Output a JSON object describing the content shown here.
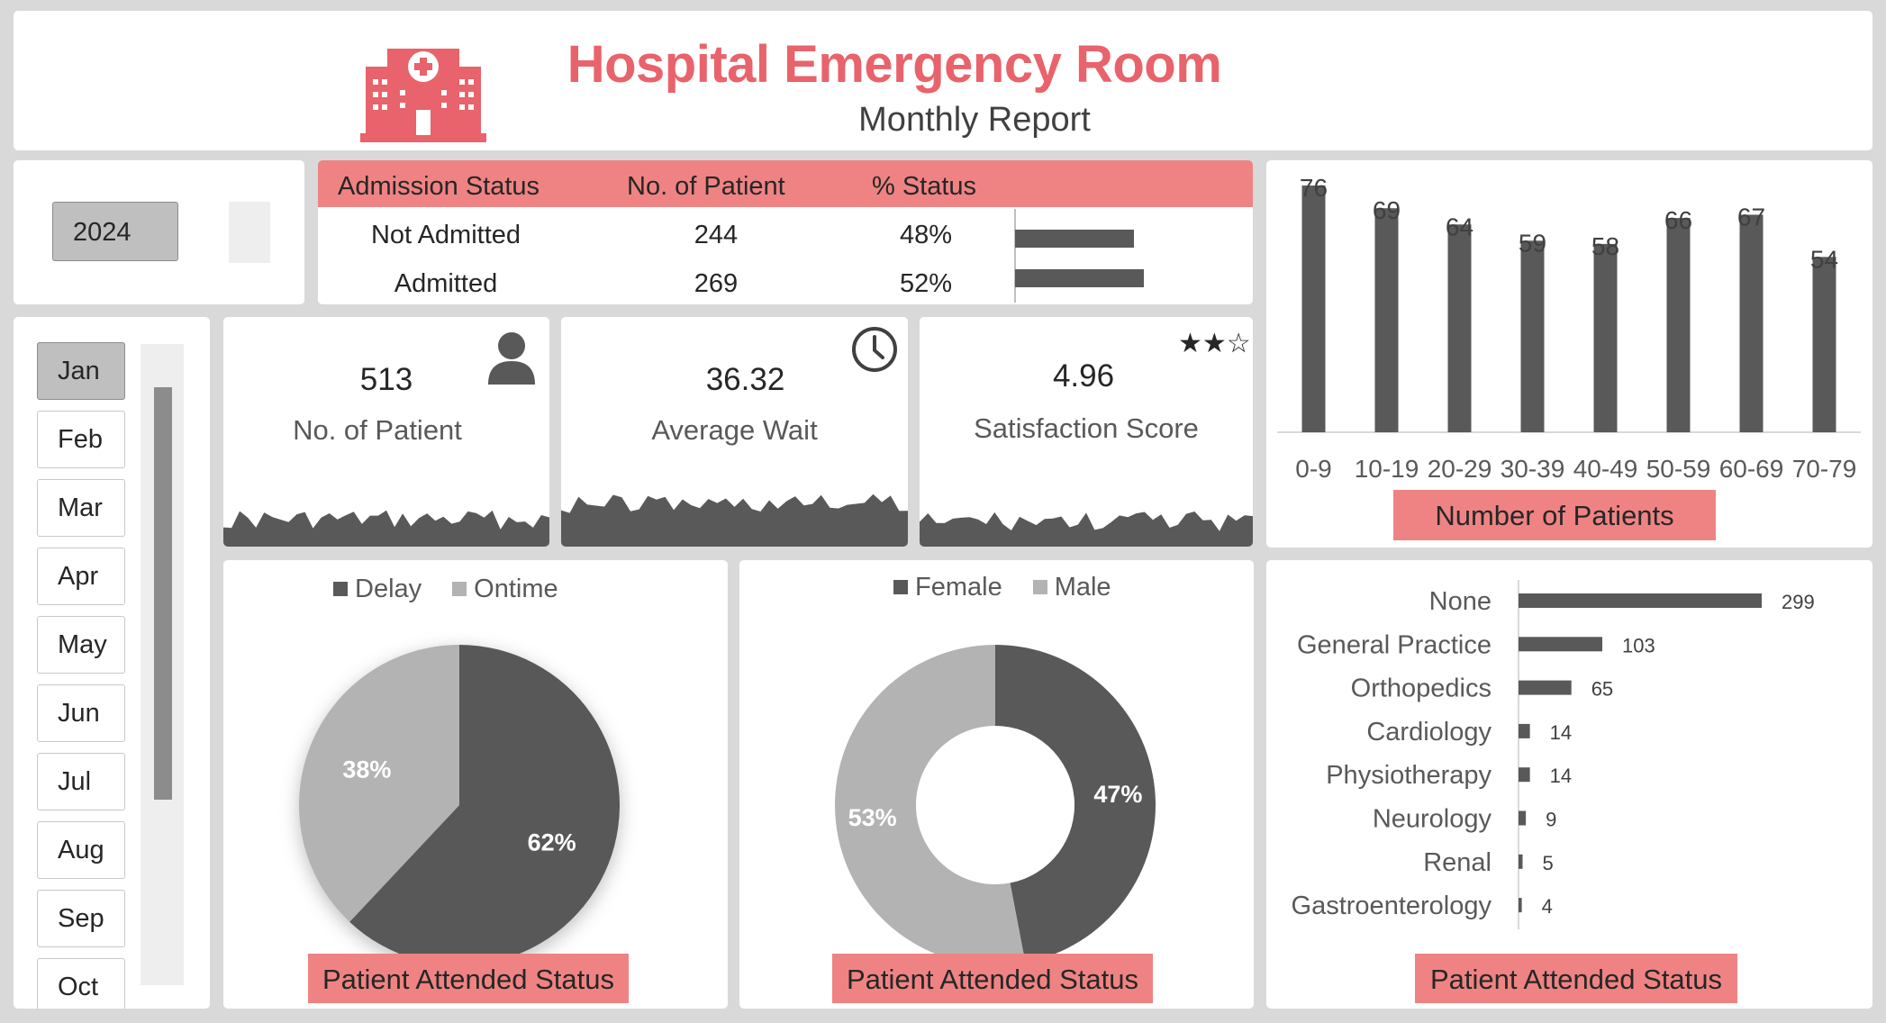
{
  "header": {
    "title": "Hospital Emergency Room",
    "subtitle": "Monthly Report",
    "logo_icon": "hospital-icon",
    "accent": "#e8636b"
  },
  "year_slicer": {
    "selected": "2024"
  },
  "admission": {
    "headers": [
      "Admission Status",
      "No. of Patient",
      "% Status"
    ],
    "rows": [
      {
        "status": "Not Admitted",
        "count": "244",
        "pct": "48%",
        "value": 48
      },
      {
        "status": "Admitted",
        "count": "269",
        "pct": "52%",
        "value": 52
      }
    ]
  },
  "month_slicer": {
    "items": [
      "Jan",
      "Feb",
      "Mar",
      "Apr",
      "May",
      "Jun",
      "Jul",
      "Aug",
      "Sep",
      "Oct"
    ],
    "selected": "Jan"
  },
  "kpis": [
    {
      "value": "513",
      "label": "No. of Patient",
      "icon": "person-icon"
    },
    {
      "value": "36.32",
      "label": "Average Wait",
      "icon": "clock-icon"
    },
    {
      "value": "4.96",
      "label": "Satisfaction Score",
      "icon": "stars-icon",
      "stars_text": "★★☆"
    }
  ],
  "charts": {
    "age": {
      "badge": "Number of Patients"
    },
    "attended": {
      "badge": "Patient Attended Status"
    },
    "gender": {
      "badge": "Patient Attended Status"
    },
    "department": {
      "badge": "Patient Attended Status"
    }
  },
  "colors": {
    "dark": "#595959",
    "light": "#b3b3b3",
    "badge": "#ef8383"
  },
  "chart_data": [
    {
      "type": "bar",
      "categories": [
        "0-9",
        "10-19",
        "20-29",
        "30-39",
        "40-49",
        "50-59",
        "60-69",
        "70-79"
      ],
      "values": [
        76,
        69,
        64,
        59,
        58,
        66,
        67,
        54
      ],
      "ylim": [
        0,
        76
      ],
      "grid": false
    },
    {
      "type": "pie",
      "categories": [
        "Delay",
        "Ontime"
      ],
      "values": [
        62,
        38
      ],
      "labels": [
        "62%",
        "38%"
      ],
      "legend": "top"
    },
    {
      "type": "pie",
      "variant": "donut",
      "categories": [
        "Female",
        "Male"
      ],
      "values": [
        47,
        53
      ],
      "labels": [
        "47%",
        "53%"
      ],
      "legend": "top"
    },
    {
      "type": "bar",
      "orientation": "horizontal",
      "categories": [
        "None",
        "General Practice",
        "Orthopedics",
        "Cardiology",
        "Physiotherapy",
        "Neurology",
        "Renal",
        "Gastroenterology"
      ],
      "values": [
        299,
        103,
        65,
        14,
        14,
        9,
        5,
        4
      ]
    }
  ]
}
